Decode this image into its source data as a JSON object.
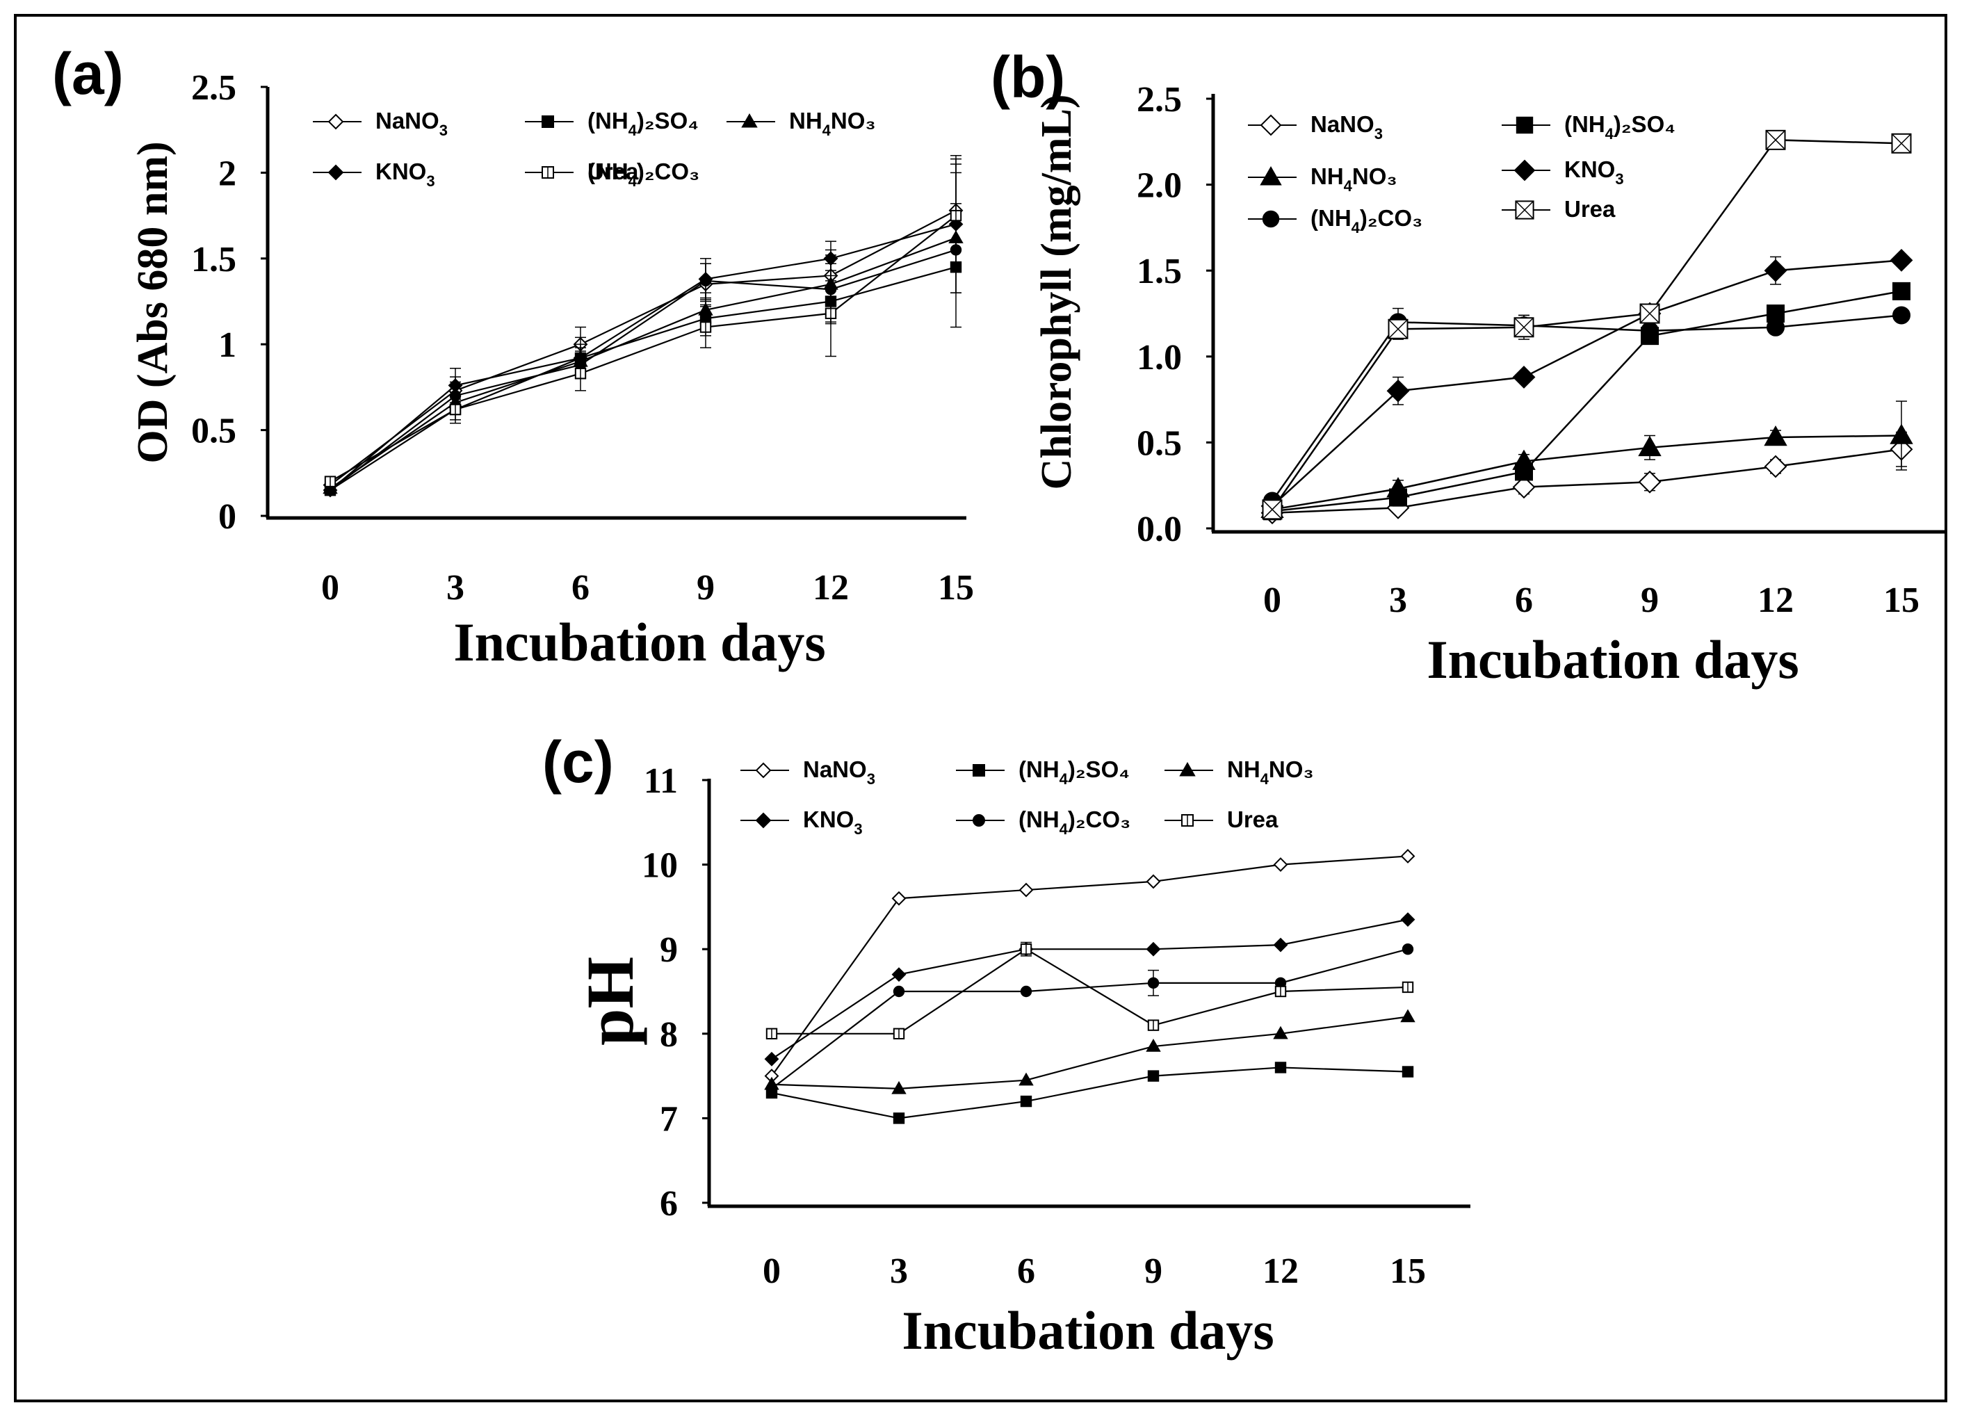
{
  "figure": {
    "background": "#ffffff",
    "line_color": "#000000"
  },
  "chart_data": [
    {
      "id": "a",
      "panel_label": "(a)",
      "type": "line",
      "x": [
        0,
        3,
        6,
        9,
        12,
        15
      ],
      "xlabel": "Incubation days",
      "ylabel": "OD (Abs 680 nm)",
      "xticks": [
        "0",
        "3",
        "6",
        "9",
        "12",
        "15"
      ],
      "yticks": [
        "0",
        "0.5",
        "1",
        "1.5",
        "2",
        "2.5"
      ],
      "ylim": [
        0,
        2.5
      ],
      "series": [
        {
          "name": "NaNO3",
          "label_main": "NaNO",
          "label_sub": "3",
          "label_tail": "",
          "marker": "diamond-open",
          "values": [
            0.18,
            0.73,
            1.0,
            1.35,
            1.4,
            1.78
          ],
          "errors": [
            0.03,
            0.08,
            0.1,
            0.12,
            0.15,
            0.3
          ]
        },
        {
          "name": "(NH4)2SO4",
          "label_main": "(NH",
          "label_sub": "4",
          "label_tail": ")₂SO₄",
          "marker": "square",
          "values": [
            0.15,
            0.62,
            0.92,
            1.15,
            1.25,
            1.45
          ],
          "errors": [
            0.03,
            0.06,
            0.08,
            0.1,
            0.12,
            0.15
          ]
        },
        {
          "name": "NH4NO3",
          "label_main": "NH",
          "label_sub": "4",
          "label_tail": "NO₃",
          "marker": "triangle",
          "values": [
            0.16,
            0.66,
            0.9,
            1.2,
            1.35,
            1.62
          ],
          "errors": [
            0.03,
            0.06,
            0.08,
            0.1,
            0.12,
            0.2
          ]
        },
        {
          "name": "KNO3",
          "label_main": "KNO",
          "label_sub": "3",
          "label_tail": "",
          "marker": "diamond",
          "values": [
            0.15,
            0.76,
            0.92,
            1.38,
            1.5,
            1.7
          ],
          "errors": [
            0.03,
            0.1,
            0.12,
            0.12,
            0.1,
            0.4
          ]
        },
        {
          "name": "(NH4)2CO3",
          "label_main": "(NH",
          "label_sub": "4",
          "label_tail": ")₂CO₃",
          "marker": "circle",
          "values": [
            0.15,
            0.7,
            0.88,
            1.37,
            1.32,
            1.55
          ],
          "errors": [
            0.03,
            0.08,
            0.08,
            0.1,
            0.2,
            0.45
          ]
        },
        {
          "name": "Urea",
          "label_main": "Urea",
          "label_sub": "",
          "label_tail": "",
          "marker": "square-open",
          "values": [
            0.2,
            0.62,
            0.83,
            1.1,
            1.18,
            1.75
          ],
          "errors": [
            0.03,
            0.08,
            0.1,
            0.12,
            0.25,
            0.3
          ]
        }
      ]
    },
    {
      "id": "b",
      "panel_label": "(b)",
      "type": "line",
      "x": [
        0,
        3,
        6,
        9,
        12,
        15
      ],
      "xlabel": "Incubation days",
      "ylabel": "Chlorophyll (mg/mL)",
      "xticks": [
        "0",
        "3",
        "6",
        "9",
        "12",
        "15"
      ],
      "yticks": [
        "0.0",
        "0.5",
        "1.0",
        "1.5",
        "2.0",
        "2.5"
      ],
      "ylim": [
        0,
        2.5
      ],
      "series": [
        {
          "name": "NaNO3",
          "label_main": "NaNO",
          "label_sub": "3",
          "label_tail": "",
          "marker": "diamond-open",
          "values": [
            0.09,
            0.12,
            0.24,
            0.27,
            0.36,
            0.46
          ],
          "errors": [
            0.02,
            0.03,
            0.04,
            0.05,
            0.04,
            0.1
          ]
        },
        {
          "name": "(NH4)2SO4",
          "label_main": "(NH",
          "label_sub": "4",
          "label_tail": ")₂SO₄",
          "marker": "square",
          "values": [
            0.1,
            0.18,
            0.33,
            1.12,
            1.25,
            1.38
          ],
          "errors": [
            0.02,
            0.05,
            0.04,
            0.04,
            0.04,
            0.04
          ]
        },
        {
          "name": "NH4NO3",
          "label_main": "NH",
          "label_sub": "4",
          "label_tail": "NO₃",
          "marker": "triangle",
          "values": [
            0.11,
            0.23,
            0.39,
            0.47,
            0.53,
            0.54
          ],
          "errors": [
            0.02,
            0.05,
            0.04,
            0.07,
            0.04,
            0.2
          ]
        },
        {
          "name": "KNO3",
          "label_main": "KNO",
          "label_sub": "3",
          "label_tail": "",
          "marker": "diamond",
          "values": [
            0.13,
            0.8,
            0.88,
            1.25,
            1.5,
            1.56
          ],
          "errors": [
            0.02,
            0.08,
            0.03,
            0.04,
            0.08,
            0.03
          ]
        },
        {
          "name": "(NH4)2CO3",
          "label_main": "(NH",
          "label_sub": "4",
          "label_tail": ")₂CO₃",
          "marker": "circle",
          "values": [
            0.16,
            1.2,
            1.18,
            1.15,
            1.17,
            1.24
          ],
          "errors": [
            0.02,
            0.08,
            0.06,
            0.03,
            0.03,
            0.03
          ]
        },
        {
          "name": "Urea",
          "label_main": "Urea",
          "label_sub": "",
          "label_tail": "",
          "marker": "xbox",
          "values": [
            0.11,
            1.16,
            1.17,
            1.25,
            2.26,
            2.24
          ],
          "errors": [
            0.05,
            0.06,
            0.07,
            0.05,
            0.03,
            0.05
          ]
        }
      ]
    },
    {
      "id": "c",
      "panel_label": "(c)",
      "type": "line",
      "x": [
        0,
        3,
        6,
        9,
        12,
        15
      ],
      "xlabel": "Incubation days",
      "ylabel": "pH",
      "xticks": [
        "0",
        "3",
        "6",
        "9",
        "12",
        "15"
      ],
      "yticks": [
        "6",
        "7",
        "8",
        "9",
        "10",
        "11"
      ],
      "ylim": [
        6,
        11
      ],
      "series": [
        {
          "name": "NaNO3",
          "label_main": "NaNO",
          "label_sub": "3",
          "label_tail": "",
          "marker": "diamond-open",
          "values": [
            7.5,
            9.6,
            9.7,
            9.8,
            10.0,
            10.1
          ],
          "errors": [
            0,
            0,
            0,
            0,
            0,
            0
          ]
        },
        {
          "name": "(NH4)2SO4",
          "label_main": "(NH",
          "label_sub": "4",
          "label_tail": ")₂SO₄",
          "marker": "square",
          "values": [
            7.3,
            7.0,
            7.2,
            7.5,
            7.6,
            7.55
          ],
          "errors": [
            0,
            0,
            0,
            0,
            0,
            0
          ]
        },
        {
          "name": "NH4NO3",
          "label_main": "NH",
          "label_sub": "4",
          "label_tail": "NO₃",
          "marker": "triangle",
          "values": [
            7.4,
            7.35,
            7.45,
            7.85,
            8.0,
            8.2
          ],
          "errors": [
            0,
            0,
            0,
            0,
            0,
            0
          ]
        },
        {
          "name": "KNO3",
          "label_main": "KNO",
          "label_sub": "3",
          "label_tail": "",
          "marker": "diamond",
          "values": [
            7.7,
            8.7,
            9.0,
            9.0,
            9.05,
            9.35
          ],
          "errors": [
            0,
            0,
            0,
            0,
            0,
            0
          ]
        },
        {
          "name": "(NH4)2CO3",
          "label_main": "(NH",
          "label_sub": "4",
          "label_tail": ")₂CO₃",
          "marker": "circle",
          "values": [
            7.35,
            8.5,
            8.5,
            8.6,
            8.6,
            9.0
          ],
          "errors": [
            0,
            0,
            0,
            0.15,
            0,
            0
          ]
        },
        {
          "name": "Urea",
          "label_main": "Urea",
          "label_sub": "",
          "label_tail": "",
          "marker": "square-open",
          "values": [
            8.0,
            8.0,
            9.0,
            8.1,
            8.5,
            8.55
          ],
          "errors": [
            0.05,
            0.05,
            0.08,
            0.05,
            0.05,
            0.05
          ]
        }
      ]
    }
  ]
}
